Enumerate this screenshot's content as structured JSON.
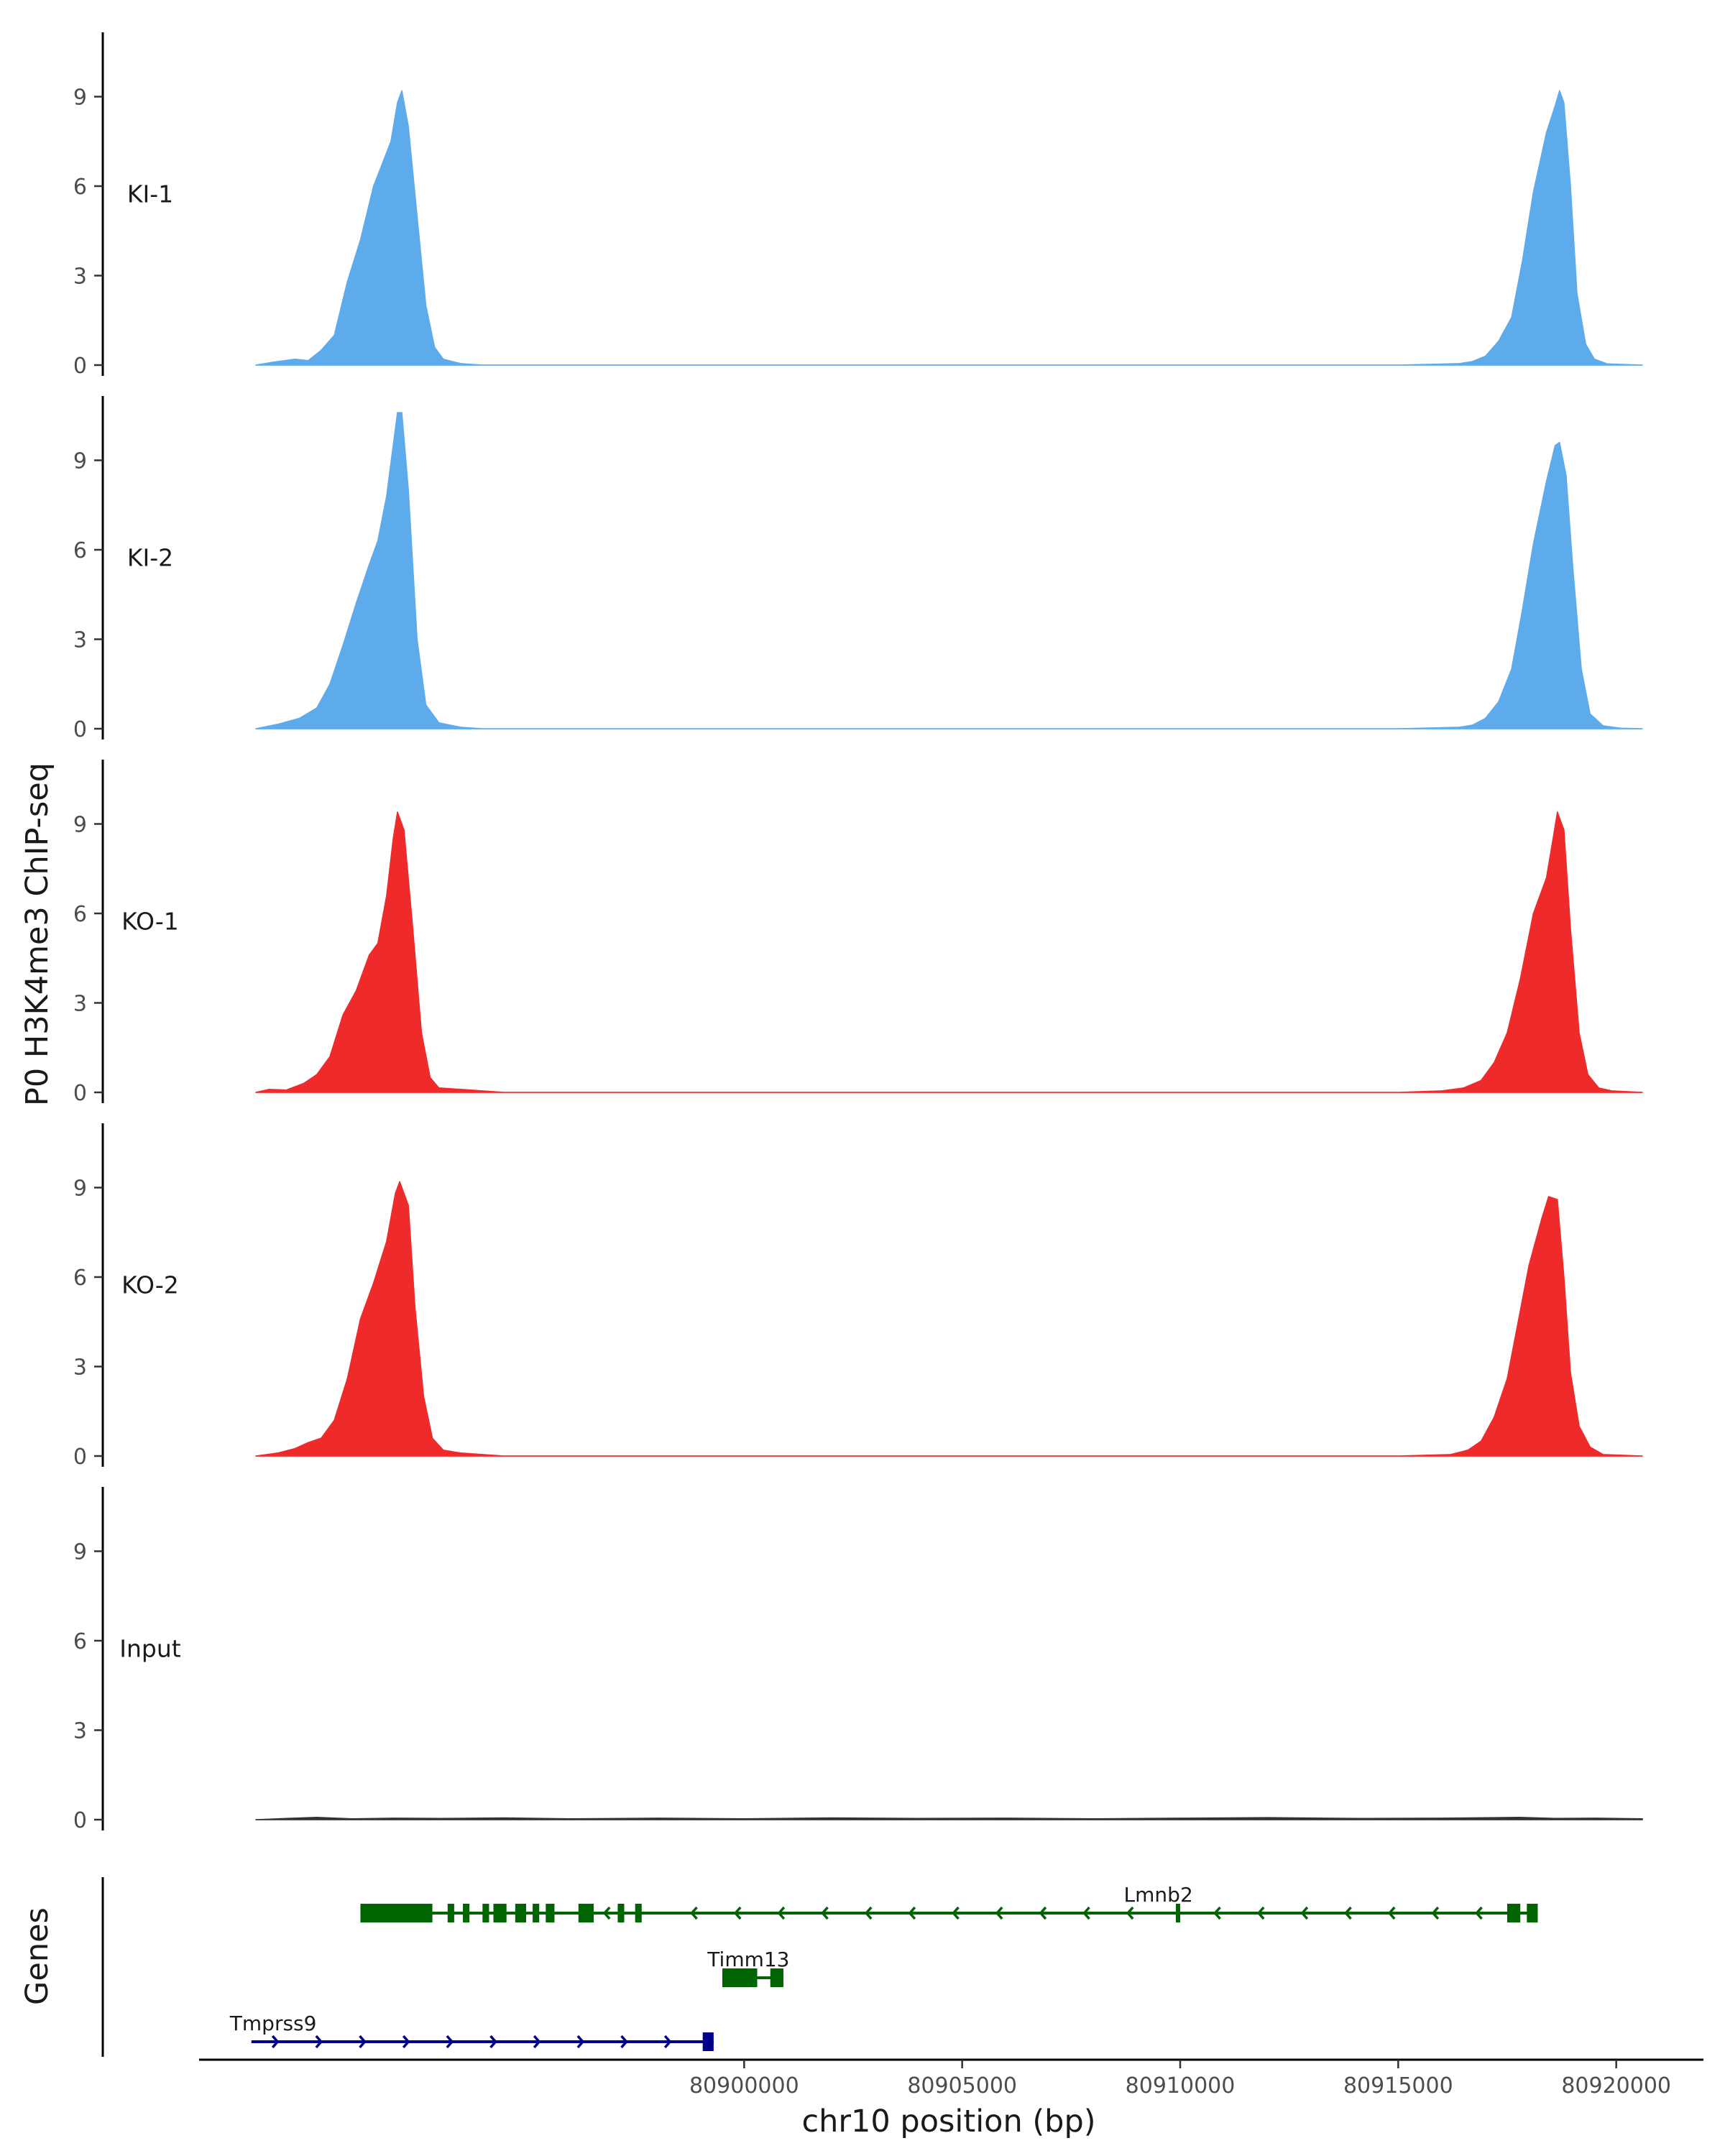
{
  "chart_data": {
    "type": "area",
    "ylabel": "P0 H3K4me3 ChIP-seq",
    "xlabel": "chr10 position (bp)",
    "genes_label": "Genes",
    "xlim": [
      80887500,
      80922000
    ],
    "region": [
      80888800,
      80920600
    ],
    "x_ticks": [
      80900000,
      80905000,
      80910000,
      80915000,
      80920000
    ],
    "x_tick_labels": [
      "80900000",
      "80905000",
      "80910000",
      "80915000",
      "80920000"
    ],
    "y_ticks": [
      0,
      3,
      6,
      9
    ],
    "y_tick_labels": [
      "0",
      "3",
      "6",
      "9"
    ],
    "ylim": [
      0,
      11
    ],
    "grid": false,
    "tracks": [
      {
        "name": "KI-1",
        "color": "#5DABEA",
        "points": [
          [
            80888800,
            0
          ],
          [
            80889200,
            0.1
          ],
          [
            80889700,
            0.2
          ],
          [
            80890000,
            0.15
          ],
          [
            80890300,
            0.5
          ],
          [
            80890600,
            1.0
          ],
          [
            80890900,
            2.8
          ],
          [
            80891200,
            4.2
          ],
          [
            80891500,
            6.0
          ],
          [
            80891900,
            7.5
          ],
          [
            80892050,
            8.8
          ],
          [
            80892150,
            9.2
          ],
          [
            80892300,
            8.0
          ],
          [
            80892500,
            5.0
          ],
          [
            80892700,
            2.0
          ],
          [
            80892900,
            0.6
          ],
          [
            80893100,
            0.2
          ],
          [
            80893500,
            0.05
          ],
          [
            80894000,
            0
          ],
          [
            80915000,
            0
          ],
          [
            80916400,
            0.05
          ],
          [
            80916700,
            0.12
          ],
          [
            80917000,
            0.3
          ],
          [
            80917300,
            0.8
          ],
          [
            80917600,
            1.6
          ],
          [
            80917850,
            3.5
          ],
          [
            80918100,
            5.8
          ],
          [
            80918400,
            7.8
          ],
          [
            80918600,
            8.7
          ],
          [
            80918700,
            9.2
          ],
          [
            80918800,
            8.8
          ],
          [
            80918950,
            6.0
          ],
          [
            80919100,
            2.4
          ],
          [
            80919300,
            0.7
          ],
          [
            80919500,
            0.2
          ],
          [
            80919800,
            0.04
          ],
          [
            80920600,
            0
          ]
        ]
      },
      {
        "name": "KI-2",
        "color": "#5DABEA",
        "points": [
          [
            80888800,
            0
          ],
          [
            80889300,
            0.15
          ],
          [
            80889800,
            0.35
          ],
          [
            80890200,
            0.7
          ],
          [
            80890500,
            1.5
          ],
          [
            80890800,
            2.8
          ],
          [
            80891100,
            4.2
          ],
          [
            80891400,
            5.5
          ],
          [
            80891600,
            6.3
          ],
          [
            80891800,
            7.8
          ],
          [
            80891950,
            9.5
          ],
          [
            80892050,
            10.6
          ],
          [
            80892150,
            10.6
          ],
          [
            80892300,
            8.0
          ],
          [
            80892500,
            3.0
          ],
          [
            80892700,
            0.8
          ],
          [
            80893000,
            0.2
          ],
          [
            80893500,
            0.05
          ],
          [
            80894000,
            0
          ],
          [
            80915000,
            0
          ],
          [
            80916400,
            0.05
          ],
          [
            80916700,
            0.12
          ],
          [
            80917000,
            0.35
          ],
          [
            80917300,
            0.9
          ],
          [
            80917600,
            2.0
          ],
          [
            80917850,
            4.0
          ],
          [
            80918100,
            6.2
          ],
          [
            80918400,
            8.3
          ],
          [
            80918600,
            9.5
          ],
          [
            80918700,
            9.6
          ],
          [
            80918850,
            8.5
          ],
          [
            80919000,
            5.5
          ],
          [
            80919200,
            2.0
          ],
          [
            80919400,
            0.5
          ],
          [
            80919700,
            0.1
          ],
          [
            80920100,
            0.02
          ],
          [
            80920600,
            0
          ]
        ]
      },
      {
        "name": "KO-1",
        "color": "#EE2A2A",
        "points": [
          [
            80888800,
            0
          ],
          [
            80889100,
            0.1
          ],
          [
            80889500,
            0.08
          ],
          [
            80889900,
            0.3
          ],
          [
            80890200,
            0.6
          ],
          [
            80890500,
            1.2
          ],
          [
            80890800,
            2.6
          ],
          [
            80891100,
            3.4
          ],
          [
            80891400,
            4.6
          ],
          [
            80891600,
            5.0
          ],
          [
            80891800,
            6.6
          ],
          [
            80891950,
            8.5
          ],
          [
            80892050,
            9.4
          ],
          [
            80892200,
            8.8
          ],
          [
            80892400,
            5.5
          ],
          [
            80892600,
            2.0
          ],
          [
            80892800,
            0.5
          ],
          [
            80893000,
            0.15
          ],
          [
            80893500,
            0.1
          ],
          [
            80894000,
            0.05
          ],
          [
            80894500,
            0
          ],
          [
            80915000,
            0
          ],
          [
            80916000,
            0.05
          ],
          [
            80916500,
            0.15
          ],
          [
            80916900,
            0.4
          ],
          [
            80917200,
            1.0
          ],
          [
            80917500,
            2.0
          ],
          [
            80917800,
            3.8
          ],
          [
            80918100,
            6.0
          ],
          [
            80918400,
            7.2
          ],
          [
            80918550,
            8.5
          ],
          [
            80918650,
            9.4
          ],
          [
            80918800,
            8.8
          ],
          [
            80918950,
            5.5
          ],
          [
            80919150,
            2.0
          ],
          [
            80919350,
            0.6
          ],
          [
            80919600,
            0.15
          ],
          [
            80919900,
            0.05
          ],
          [
            80920600,
            0
          ]
        ]
      },
      {
        "name": "KO-2",
        "color": "#EE2A2A",
        "points": [
          [
            80888800,
            0
          ],
          [
            80889300,
            0.1
          ],
          [
            80889700,
            0.25
          ],
          [
            80890000,
            0.45
          ],
          [
            80890300,
            0.6
          ],
          [
            80890600,
            1.2
          ],
          [
            80890900,
            2.6
          ],
          [
            80891200,
            4.6
          ],
          [
            80891500,
            5.8
          ],
          [
            80891800,
            7.2
          ],
          [
            80892000,
            8.8
          ],
          [
            80892100,
            9.2
          ],
          [
            80892300,
            8.4
          ],
          [
            80892450,
            5.0
          ],
          [
            80892650,
            2.0
          ],
          [
            80892850,
            0.6
          ],
          [
            80893100,
            0.2
          ],
          [
            80893500,
            0.1
          ],
          [
            80894000,
            0.05
          ],
          [
            80894500,
            0
          ],
          [
            80915000,
            0
          ],
          [
            80916200,
            0.05
          ],
          [
            80916600,
            0.2
          ],
          [
            80916900,
            0.5
          ],
          [
            80917200,
            1.3
          ],
          [
            80917500,
            2.6
          ],
          [
            80917750,
            4.5
          ],
          [
            80918000,
            6.4
          ],
          [
            80918300,
            8.0
          ],
          [
            80918450,
            8.7
          ],
          [
            80918650,
            8.6
          ],
          [
            80918800,
            6.0
          ],
          [
            80918950,
            2.8
          ],
          [
            80919150,
            1.0
          ],
          [
            80919400,
            0.3
          ],
          [
            80919700,
            0.05
          ],
          [
            80920600,
            0
          ]
        ]
      },
      {
        "name": "Input",
        "color": "#333333",
        "points": [
          [
            80888800,
            0
          ],
          [
            80889500,
            0.04
          ],
          [
            80890200,
            0.08
          ],
          [
            80891000,
            0.03
          ],
          [
            80892000,
            0.05
          ],
          [
            80893000,
            0.04
          ],
          [
            80894500,
            0.06
          ],
          [
            80896000,
            0.03
          ],
          [
            80898000,
            0.05
          ],
          [
            80900000,
            0.03
          ],
          [
            80902000,
            0.06
          ],
          [
            80904000,
            0.04
          ],
          [
            80906000,
            0.05
          ],
          [
            80908000,
            0.03
          ],
          [
            80910000,
            0.05
          ],
          [
            80912000,
            0.07
          ],
          [
            80914000,
            0.04
          ],
          [
            80916000,
            0.05
          ],
          [
            80917800,
            0.08
          ],
          [
            80918600,
            0.04
          ],
          [
            80919500,
            0.05
          ],
          [
            80920600,
            0.03
          ]
        ]
      }
    ],
    "genes": [
      {
        "name": "Lmnb2",
        "strand": "-",
        "color": "#006400",
        "start": 80891200,
        "end": 80918200,
        "label_x": 80909500,
        "exons": [
          [
            80891200,
            80892850
          ],
          [
            80893200,
            80893350
          ],
          [
            80893550,
            80893700
          ],
          [
            80894000,
            80894150
          ],
          [
            80894250,
            80894550
          ],
          [
            80894750,
            80895000
          ],
          [
            80895150,
            80895300
          ],
          [
            80895450,
            80895650
          ],
          [
            80896200,
            80896550
          ],
          [
            80897100,
            80897250
          ],
          [
            80897500,
            80897650
          ],
          [
            80909900,
            80910000
          ],
          [
            80917500,
            80917800
          ],
          [
            80917950,
            80918200
          ]
        ]
      },
      {
        "name": "Timm13",
        "strand": "-",
        "color": "#006400",
        "start": 80899500,
        "end": 80900900,
        "label_x": 80900100,
        "exons": [
          [
            80899500,
            80900300
          ],
          [
            80900600,
            80900900
          ]
        ]
      },
      {
        "name": "Tmprss9",
        "strand": "+",
        "color": "#00008B",
        "start": 80888700,
        "end": 80899300,
        "label_x": 80888700,
        "exons": [
          [
            80899050,
            80899300
          ]
        ]
      }
    ]
  }
}
